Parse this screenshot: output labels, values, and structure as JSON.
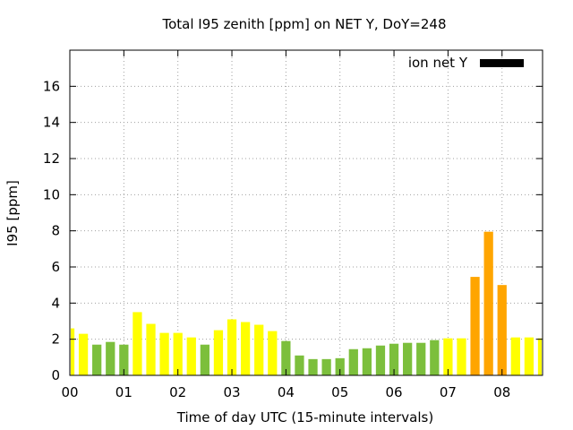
{
  "chart_data": {
    "type": "bar",
    "title": "Total I95 zenith [ppm] on NET Y, DoY=248",
    "xlabel": "Time of day UTC (15-minute intervals)",
    "ylabel": "I95 [ppm]",
    "xlim": [
      0,
      8.75
    ],
    "ylim": [
      0,
      18
    ],
    "xticks": [
      0,
      1,
      2,
      3,
      4,
      5,
      6,
      7,
      8
    ],
    "xtick_labels": [
      "00",
      "01",
      "02",
      "03",
      "04",
      "05",
      "06",
      "07",
      "08"
    ],
    "yticks": [
      0,
      2,
      4,
      6,
      8,
      10,
      12,
      14,
      16
    ],
    "ytick_labels": [
      "0",
      "2",
      "4",
      "6",
      "8",
      "10",
      "12",
      "14",
      "16"
    ],
    "grid": true,
    "legend": {
      "label": "ion net Y",
      "color": "#000000",
      "placement": "top-right"
    },
    "colors": {
      "green": "#7cbf3c",
      "yellow": "#ffff00",
      "orange": "#ffa500"
    },
    "bar_time_step_hours": 0.25,
    "bars": [
      {
        "time": 0.0,
        "value": 2.6,
        "color": "yellow"
      },
      {
        "time": 0.25,
        "value": 2.3,
        "color": "yellow"
      },
      {
        "time": 0.5,
        "value": 1.7,
        "color": "green"
      },
      {
        "time": 0.75,
        "value": 1.85,
        "color": "green"
      },
      {
        "time": 1.0,
        "value": 1.7,
        "color": "green"
      },
      {
        "time": 1.25,
        "value": 3.5,
        "color": "yellow"
      },
      {
        "time": 1.5,
        "value": 2.85,
        "color": "yellow"
      },
      {
        "time": 1.75,
        "value": 2.35,
        "color": "yellow"
      },
      {
        "time": 2.0,
        "value": 2.35,
        "color": "yellow"
      },
      {
        "time": 2.25,
        "value": 2.1,
        "color": "yellow"
      },
      {
        "time": 2.5,
        "value": 1.7,
        "color": "green"
      },
      {
        "time": 2.75,
        "value": 2.5,
        "color": "yellow"
      },
      {
        "time": 3.0,
        "value": 3.1,
        "color": "yellow"
      },
      {
        "time": 3.25,
        "value": 2.95,
        "color": "yellow"
      },
      {
        "time": 3.5,
        "value": 2.8,
        "color": "yellow"
      },
      {
        "time": 3.75,
        "value": 2.45,
        "color": "yellow"
      },
      {
        "time": 4.0,
        "value": 1.9,
        "color": "green"
      },
      {
        "time": 4.25,
        "value": 1.1,
        "color": "green"
      },
      {
        "time": 4.5,
        "value": 0.9,
        "color": "green"
      },
      {
        "time": 4.75,
        "value": 0.9,
        "color": "green"
      },
      {
        "time": 5.0,
        "value": 0.95,
        "color": "green"
      },
      {
        "time": 5.25,
        "value": 1.45,
        "color": "green"
      },
      {
        "time": 5.5,
        "value": 1.5,
        "color": "green"
      },
      {
        "time": 5.75,
        "value": 1.65,
        "color": "green"
      },
      {
        "time": 6.0,
        "value": 1.75,
        "color": "green"
      },
      {
        "time": 6.25,
        "value": 1.8,
        "color": "green"
      },
      {
        "time": 6.5,
        "value": 1.8,
        "color": "green"
      },
      {
        "time": 6.75,
        "value": 1.95,
        "color": "green"
      },
      {
        "time": 7.0,
        "value": 2.05,
        "color": "yellow"
      },
      {
        "time": 7.25,
        "value": 2.05,
        "color": "yellow"
      },
      {
        "time": 7.5,
        "value": 5.45,
        "color": "orange"
      },
      {
        "time": 7.75,
        "value": 7.95,
        "color": "orange"
      },
      {
        "time": 8.0,
        "value": 5.0,
        "color": "orange"
      },
      {
        "time": 8.25,
        "value": 2.1,
        "color": "yellow"
      },
      {
        "time": 8.5,
        "value": 2.1,
        "color": "yellow"
      },
      {
        "time": 8.75,
        "value": 2.05,
        "color": "yellow"
      }
    ]
  }
}
